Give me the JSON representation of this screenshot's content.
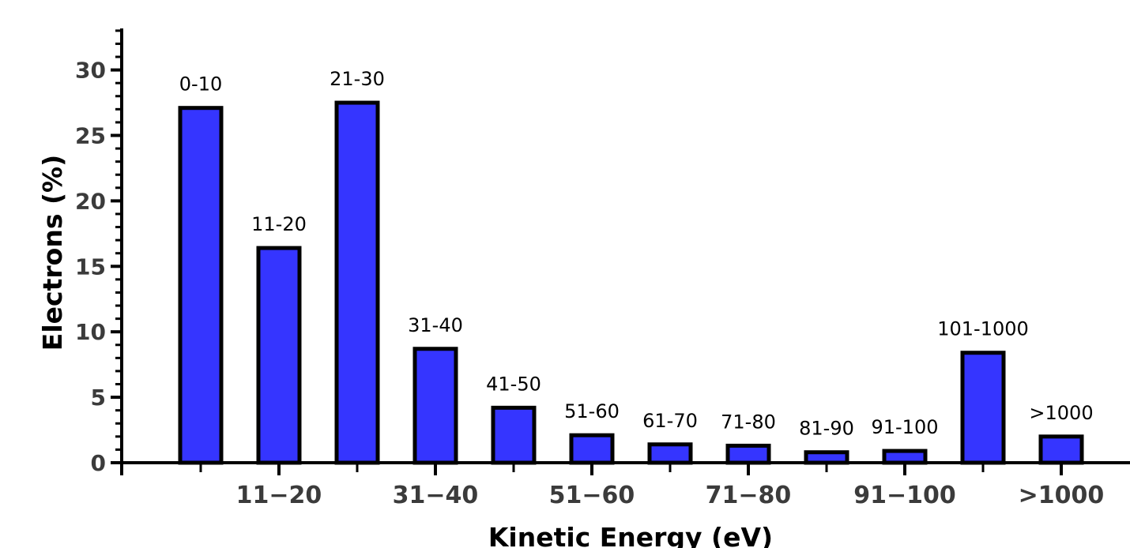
{
  "chart_data": {
    "type": "bar",
    "title": "",
    "xlabel": "Kinetic Energy (eV)",
    "ylabel": "Electrons (%)",
    "ylim": [
      0,
      33
    ],
    "yticks": [
      "0",
      "5",
      "10",
      "15",
      "20",
      "25",
      "30"
    ],
    "categories": [
      "0-10",
      "11-20",
      "21-30",
      "31-40",
      "41-50",
      "51-60",
      "61-70",
      "71-80",
      "81-90",
      "91-100",
      "101-1000",
      ">1000"
    ],
    "values": [
      27.1,
      16.4,
      27.5,
      8.7,
      4.2,
      2.1,
      1.4,
      1.3,
      0.8,
      0.9,
      8.4,
      2.0
    ],
    "xtick_labels": [
      {
        "category_index": 1,
        "label": "11−20"
      },
      {
        "category_index": 3,
        "label": "31−40"
      },
      {
        "category_index": 5,
        "label": "51−60"
      },
      {
        "category_index": 7,
        "label": "71−80"
      },
      {
        "category_index": 9,
        "label": "91−100"
      },
      {
        "category_index": 11,
        "label": ">1000"
      }
    ],
    "bar_color": "#3535ff",
    "edge_color": "#000000",
    "grid": false,
    "legend": "none"
  }
}
